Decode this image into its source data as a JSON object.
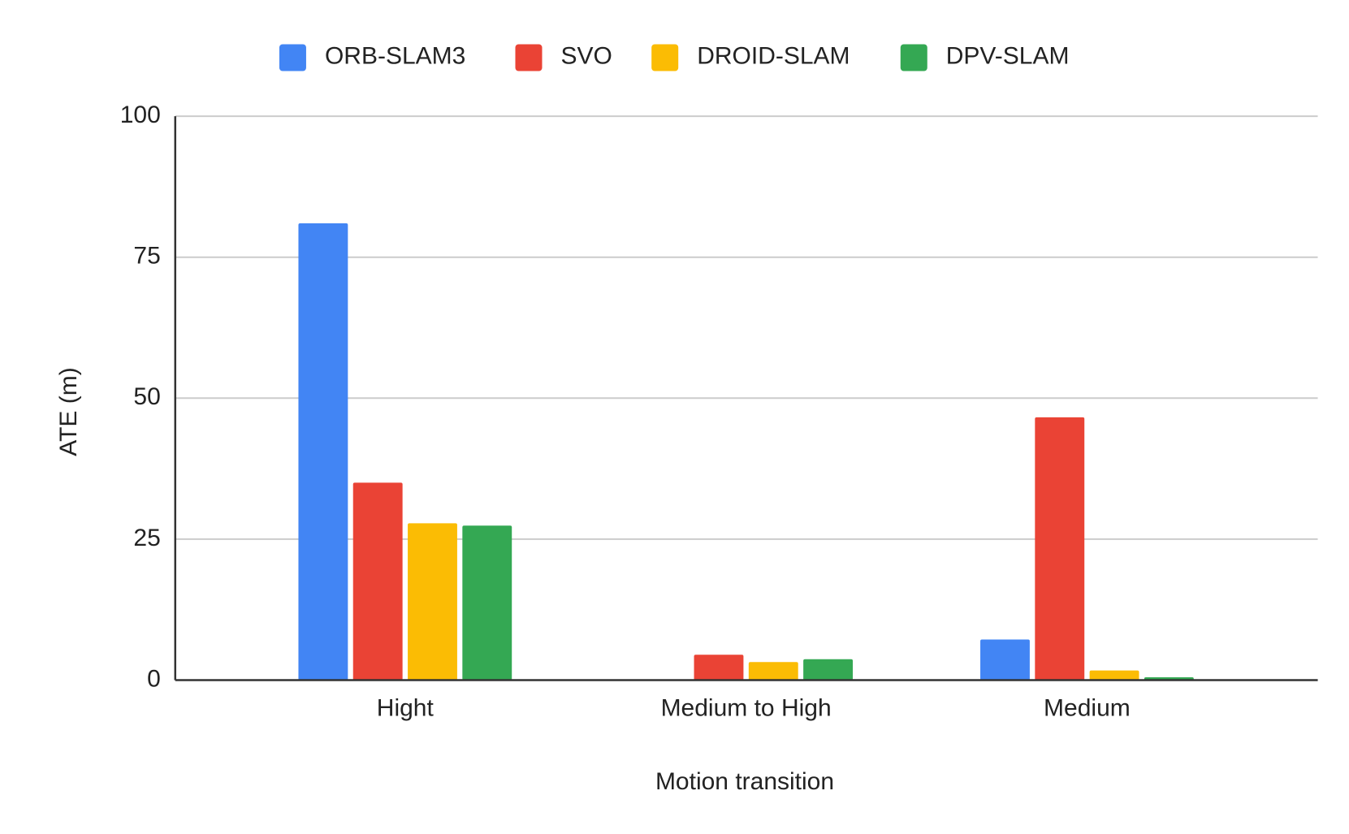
{
  "chart_data": {
    "type": "bar",
    "x_label": "Motion transition",
    "y_label": "ATE (m)",
    "categories": [
      "Hight",
      "Medium to High",
      "Medium"
    ],
    "series": [
      {
        "name": "ORB-SLAM3",
        "color": "#4285f4",
        "values": [
          81,
          null,
          7.2
        ]
      },
      {
        "name": "SVO",
        "color": "#ea4335",
        "values": [
          35,
          4.5,
          46.6
        ]
      },
      {
        "name": "DROID-SLAM",
        "color": "#fbbc04",
        "values": [
          27.8,
          3.2,
          1.7
        ]
      },
      {
        "name": "DPV-SLAM",
        "color": "#34a853",
        "values": [
          27.4,
          3.7,
          0.5
        ]
      }
    ],
    "ylim": [
      0,
      100
    ],
    "yticks": [
      0,
      25,
      50,
      75,
      100
    ],
    "grid": true,
    "legend": "top"
  }
}
